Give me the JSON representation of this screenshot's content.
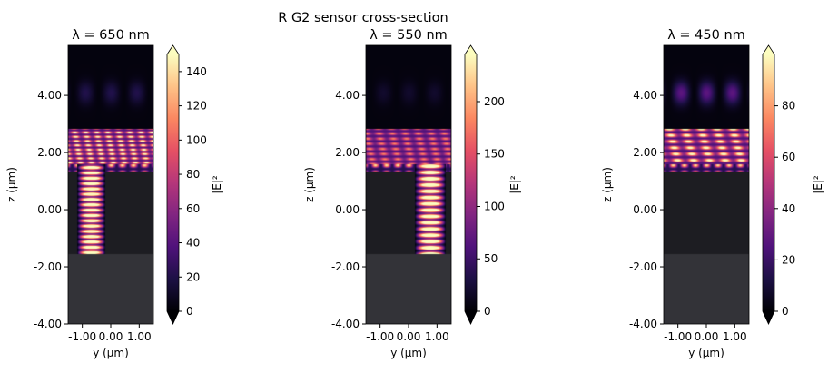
{
  "suptitle": "R G2 sensor cross-section",
  "colors": {
    "magma": [
      "#000004",
      "#1c1044",
      "#4f127b",
      "#812581",
      "#b5367a",
      "#e55064",
      "#fb8761",
      "#fec287",
      "#fcfdbf"
    ],
    "substrate": "#333338",
    "layer": "#1d1d22"
  },
  "chart_data": [
    {
      "type": "heatmap",
      "title": "λ = 650 nm",
      "xlabel": "y (µm)",
      "ylabel": "z (µm)",
      "xlim": [
        -1.5,
        1.5
      ],
      "ylim": [
        -4,
        5.75
      ],
      "xticks": [
        -1,
        0,
        1
      ],
      "xtick_labels": [
        "-1.00",
        "0.00",
        "1.00"
      ],
      "yticks": [
        -4,
        -2,
        0,
        2,
        4
      ],
      "ytick_labels": [
        "-4.00",
        "-2.00",
        "0.00",
        "2.00",
        "4.00"
      ],
      "colorbar": {
        "label": "|E|²",
        "range": [
          0,
          150
        ],
        "ticks": [
          0,
          20,
          40,
          60,
          80,
          100,
          120,
          140
        ],
        "extend": "both"
      },
      "field_column_y": [
        -1.2,
        -0.2
      ]
    },
    {
      "type": "heatmap",
      "title": "λ = 550 nm",
      "xlabel": "y (µm)",
      "ylabel": "z (µm)",
      "xlim": [
        -1.5,
        1.5
      ],
      "ylim": [
        -4,
        5.75
      ],
      "xticks": [
        -1,
        0,
        1
      ],
      "xtick_labels": [
        "-1.00",
        "0.00",
        "1.00"
      ],
      "yticks": [
        -4,
        -2,
        0,
        2,
        4
      ],
      "ytick_labels": [
        "-4.00",
        "-2.00",
        "0.00",
        "2.00",
        "4.00"
      ],
      "colorbar": {
        "label": "|E|²",
        "range": [
          0,
          245
        ],
        "ticks": [
          0,
          50,
          100,
          150,
          200
        ],
        "extend": "both"
      },
      "field_column_y": [
        0.2,
        1.3
      ]
    },
    {
      "type": "heatmap",
      "title": "λ = 450 nm",
      "xlabel": "y (µm)",
      "ylabel": "z (µm)",
      "xlim": [
        -1.5,
        1.5
      ],
      "ylim": [
        -4,
        5.75
      ],
      "xticks": [
        -1,
        0,
        1
      ],
      "xtick_labels": [
        "-1.00",
        "0.00",
        "1.00"
      ],
      "yticks": [
        -4,
        -2,
        0,
        2,
        4
      ],
      "ytick_labels": [
        "-4.00",
        "-2.00",
        "0.00",
        "2.00",
        "4.00"
      ],
      "colorbar": {
        "label": "|E|²",
        "range": [
          0,
          100
        ],
        "ticks": [
          0,
          20,
          40,
          60,
          80
        ],
        "extend": "both"
      },
      "field_column_y": null
    }
  ]
}
